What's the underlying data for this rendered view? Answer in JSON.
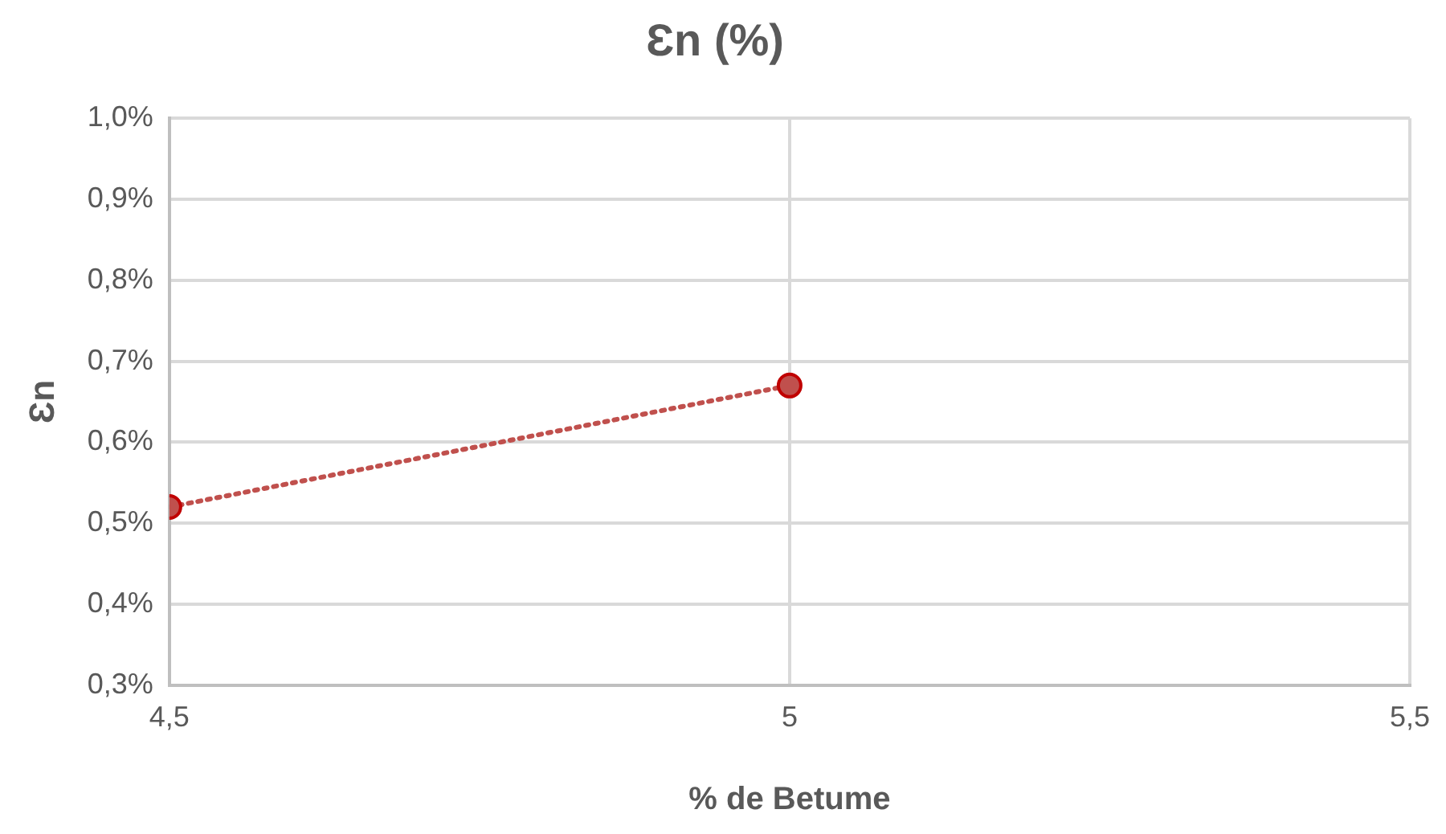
{
  "chart_data": {
    "type": "line",
    "title": "Ɛn (%)",
    "xlabel": "% de Betume",
    "ylabel": "Ɛn",
    "x": [
      4.5,
      5
    ],
    "series": [
      {
        "color": "#c0504d",
        "values": [
          0.52,
          0.67
        ]
      }
    ],
    "xlim": [
      4.5,
      5.5
    ],
    "xticks": [
      {
        "value": 4.5,
        "label": "4,5"
      },
      5,
      {
        "value": 5.5,
        "label": "5,5"
      }
    ],
    "ylim": [
      0.3,
      1.0
    ],
    "yticks": [
      {
        "value": 0.3,
        "label": "0,3%"
      },
      {
        "value": 0.4,
        "label": "0,4%"
      },
      {
        "value": 0.5,
        "label": "0,5%"
      },
      {
        "value": 0.6,
        "label": "0,6%"
      },
      {
        "value": 0.7,
        "label": "0,7%"
      },
      {
        "value": 0.8,
        "label": "0,8%"
      },
      {
        "value": 0.9,
        "label": "0,9%"
      },
      {
        "value": 1.0,
        "label": "1,0%"
      }
    ],
    "grid": true,
    "legend": false,
    "marker": "circle",
    "line_style": "dotted"
  }
}
